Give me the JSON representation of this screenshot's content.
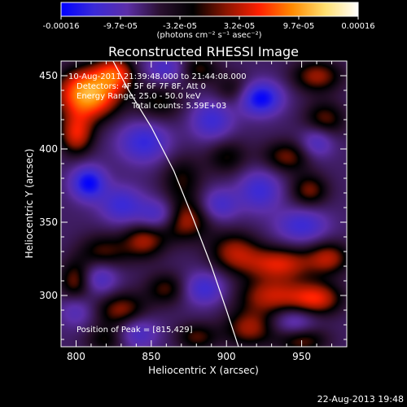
{
  "chart_data": {
    "type": "heatmap",
    "title": "Reconstructed RHESSI Image",
    "xlabel": "Heliocentric X (arcsec)",
    "ylabel": "Heliocentric Y (arcsec)",
    "xlim": [
      790,
      980
    ],
    "ylim": [
      265,
      460
    ],
    "x_ticks": [
      800,
      850,
      900,
      950
    ],
    "y_ticks": [
      300,
      350,
      400,
      450
    ],
    "colorbar": {
      "min": -0.00016,
      "max": 0.00016,
      "tick_labels": [
        "-0.00016",
        "-9.7e-05",
        "-3.2e-05",
        "3.2e-05",
        "9.7e-05",
        "0.00016"
      ],
      "units": "(photons cm⁻² s⁻¹ asec⁻²)",
      "colors": [
        "#0000ff",
        "#3a2ad8",
        "#5c2ea8",
        "#2a1030",
        "#000000",
        "#8a1500",
        "#ff2000",
        "#ff8a00",
        "#ffe070",
        "#ffffff"
      ]
    },
    "annotations": {
      "time_range": "10-Aug-2011 21:39:48.000 to 21:44:08.000",
      "detectors": "Detectors: 4F 5F 6F 7F 8F, Att 0",
      "energy_range": "Energy Range: 25.0 - 50.0 keV",
      "total_counts": "Total counts: 5.59E+03",
      "peak": "Position of Peak = [815,429]"
    },
    "limb": [
      [
        822,
        465
      ],
      [
        835,
        440
      ],
      [
        850,
        415
      ],
      [
        865,
        385
      ],
      [
        878,
        352
      ],
      [
        890,
        320
      ],
      [
        900,
        290
      ],
      [
        908,
        265
      ]
    ],
    "blobs": [
      {
        "x": 808,
        "y": 438,
        "v": 1.0,
        "sx": 14,
        "sy": 12
      },
      {
        "x": 826,
        "y": 452,
        "v": 0.55,
        "sx": 9,
        "sy": 8
      },
      {
        "x": 800,
        "y": 410,
        "v": 0.55,
        "sx": 8,
        "sy": 10
      },
      {
        "x": 855,
        "y": 432,
        "v": 0.3,
        "sx": 12,
        "sy": 10
      },
      {
        "x": 880,
        "y": 455,
        "v": 0.35,
        "sx": 10,
        "sy": 7
      },
      {
        "x": 905,
        "y": 440,
        "v": 0.3,
        "sx": 10,
        "sy": 8
      },
      {
        "x": 960,
        "y": 450,
        "v": 0.45,
        "sx": 12,
        "sy": 8
      },
      {
        "x": 965,
        "y": 420,
        "v": 0.4,
        "sx": 10,
        "sy": 9
      },
      {
        "x": 940,
        "y": 395,
        "v": 0.4,
        "sx": 12,
        "sy": 8
      },
      {
        "x": 900,
        "y": 395,
        "v": 0.3,
        "sx": 10,
        "sy": 9
      },
      {
        "x": 870,
        "y": 380,
        "v": 0.3,
        "sx": 10,
        "sy": 12
      },
      {
        "x": 955,
        "y": 372,
        "v": 0.4,
        "sx": 9,
        "sy": 8
      },
      {
        "x": 870,
        "y": 352,
        "v": 0.55,
        "sx": 13,
        "sy": 10
      },
      {
        "x": 845,
        "y": 338,
        "v": 0.45,
        "sx": 10,
        "sy": 9
      },
      {
        "x": 905,
        "y": 330,
        "v": 0.45,
        "sx": 12,
        "sy": 10
      },
      {
        "x": 935,
        "y": 322,
        "v": 0.55,
        "sx": 16,
        "sy": 8
      },
      {
        "x": 968,
        "y": 326,
        "v": 0.45,
        "sx": 10,
        "sy": 8
      },
      {
        "x": 818,
        "y": 330,
        "v": 0.35,
        "sx": 12,
        "sy": 9
      },
      {
        "x": 800,
        "y": 310,
        "v": 0.45,
        "sx": 8,
        "sy": 10
      },
      {
        "x": 830,
        "y": 290,
        "v": 0.45,
        "sx": 12,
        "sy": 9
      },
      {
        "x": 860,
        "y": 305,
        "v": 0.35,
        "sx": 10,
        "sy": 8
      },
      {
        "x": 930,
        "y": 300,
        "v": 0.5,
        "sx": 16,
        "sy": 9
      },
      {
        "x": 960,
        "y": 298,
        "v": 0.55,
        "sx": 12,
        "sy": 8
      },
      {
        "x": 915,
        "y": 278,
        "v": 0.45,
        "sx": 12,
        "sy": 9
      },
      {
        "x": 950,
        "y": 270,
        "v": 0.4,
        "sx": 12,
        "sy": 7
      },
      {
        "x": 880,
        "y": 272,
        "v": 0.35,
        "sx": 10,
        "sy": 7
      },
      {
        "x": 820,
        "y": 270,
        "v": 0.3,
        "sx": 10,
        "sy": 7
      },
      {
        "x": 922,
        "y": 435,
        "v": -0.75,
        "sx": 10,
        "sy": 8
      },
      {
        "x": 808,
        "y": 377,
        "v": -0.7,
        "sx": 8,
        "sy": 8
      },
      {
        "x": 845,
        "y": 405,
        "v": -0.5,
        "sx": 12,
        "sy": 10
      },
      {
        "x": 890,
        "y": 420,
        "v": -0.45,
        "sx": 10,
        "sy": 10
      },
      {
        "x": 855,
        "y": 355,
        "v": -0.55,
        "sx": 10,
        "sy": 8
      },
      {
        "x": 830,
        "y": 362,
        "v": -0.45,
        "sx": 10,
        "sy": 9
      },
      {
        "x": 922,
        "y": 372,
        "v": -0.45,
        "sx": 10,
        "sy": 10
      },
      {
        "x": 950,
        "y": 348,
        "v": -0.45,
        "sx": 12,
        "sy": 8
      },
      {
        "x": 895,
        "y": 362,
        "v": -0.4,
        "sx": 9,
        "sy": 8
      },
      {
        "x": 815,
        "y": 312,
        "v": -0.4,
        "sx": 9,
        "sy": 8
      },
      {
        "x": 885,
        "y": 305,
        "v": -0.45,
        "sx": 10,
        "sy": 8
      },
      {
        "x": 840,
        "y": 275,
        "v": -0.4,
        "sx": 10,
        "sy": 8
      },
      {
        "x": 945,
        "y": 282,
        "v": -0.35,
        "sx": 10,
        "sy": 7
      },
      {
        "x": 860,
        "y": 455,
        "v": -0.4,
        "sx": 10,
        "sy": 7
      },
      {
        "x": 960,
        "y": 405,
        "v": -0.4,
        "sx": 8,
        "sy": 8
      },
      {
        "x": 800,
        "y": 290,
        "v": -0.3,
        "sx": 8,
        "sy": 8
      }
    ]
  },
  "footer": {
    "date": "22-Aug-2013 19:48"
  }
}
